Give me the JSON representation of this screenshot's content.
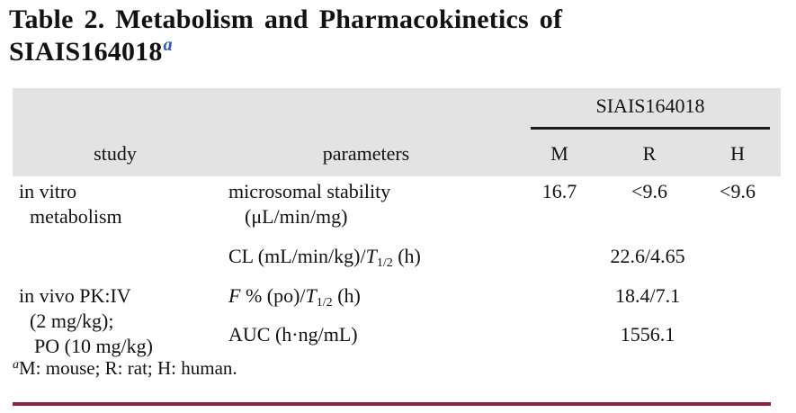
{
  "title": {
    "line1": "Table 2. Metabolism and Pharmacokinetics of",
    "line2": "SIAIS164018",
    "superscript": "a"
  },
  "table": {
    "group_header": "SIAIS164018",
    "col_headers": {
      "study": "study",
      "parameters": "parameters",
      "m": "M",
      "r": "R",
      "h": "H"
    },
    "rows": {
      "in_vitro": {
        "study_line1": "in vitro",
        "study_line2": "metabolism",
        "param_line1": "microsomal stability",
        "param_line2": "(μL/min/mg)",
        "m": "16.7",
        "r": "<9.6",
        "h": "<9.6"
      },
      "cl": {
        "param_prefix": "CL (mL/min/kg)/",
        "param_t": "T",
        "param_t_sub": "1/2",
        "param_suffix": " (h)",
        "value": "22.6/4.65"
      },
      "in_vivo": {
        "study_line1": "in vivo PK:IV",
        "study_line2": "(2 mg/kg);",
        "study_line3": "PO (10 mg/kg)",
        "param_f": "F",
        "param_mid": " % (po)/",
        "param_t": "T",
        "param_t_sub": "1/2",
        "param_suffix": " (h)",
        "value": "18.4/7.1"
      },
      "auc": {
        "param": "AUC (h·ng/mL)",
        "value": "1556.1"
      }
    }
  },
  "footnote": {
    "marker": "a",
    "text": "M: mouse; R: rat; H: human."
  },
  "colors": {
    "header_bg": "#e3e3e3",
    "accent_blue": "#2e5ab5",
    "bottom_rule": "#8f2045",
    "group_rule": "#1a1a1a"
  }
}
